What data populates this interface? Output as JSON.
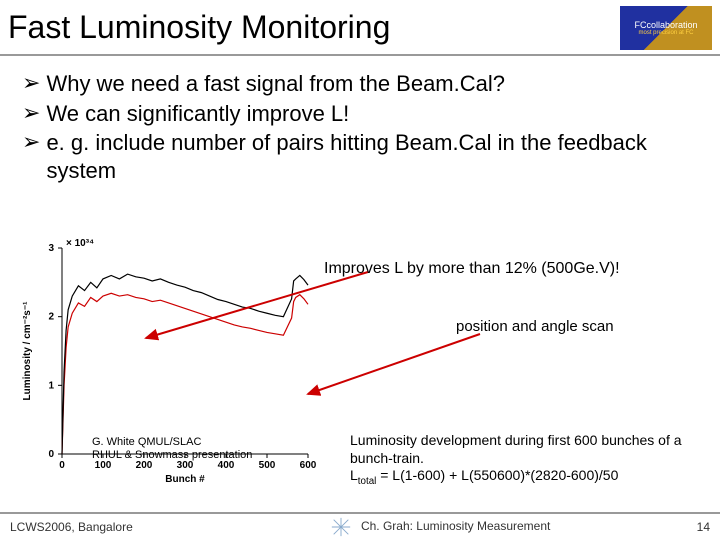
{
  "title": "Fast Luminosity Monitoring",
  "logo": {
    "line1": "FCcollaboration",
    "line2": "most precision at FC"
  },
  "bullets": [
    "Why we need a fast signal from the Beam.Cal?",
    "We can significantly improve L!",
    "e. g. include number of pairs hitting Beam.Cal in the feedback system"
  ],
  "chart": {
    "x_label": "Bunch #",
    "y_label": "Luminosity / cm⁻²s⁻¹",
    "y_multiplier": "× 10³⁴",
    "x_ticks": [
      0,
      100,
      200,
      300,
      400,
      500,
      600
    ],
    "y_ticks": [
      0,
      1,
      2,
      3
    ],
    "background_color": "#ffffff",
    "axis_color": "#000000",
    "curves": {
      "black": {
        "color": "#000000",
        "line_width": 1.2,
        "points": [
          [
            0,
            0
          ],
          [
            5,
            1.2
          ],
          [
            10,
            1.8
          ],
          [
            15,
            2.1
          ],
          [
            25,
            2.3
          ],
          [
            40,
            2.45
          ],
          [
            55,
            2.38
          ],
          [
            70,
            2.5
          ],
          [
            85,
            2.42
          ],
          [
            100,
            2.55
          ],
          [
            120,
            2.6
          ],
          [
            140,
            2.55
          ],
          [
            160,
            2.62
          ],
          [
            180,
            2.58
          ],
          [
            200,
            2.56
          ],
          [
            220,
            2.52
          ],
          [
            240,
            2.55
          ],
          [
            260,
            2.5
          ],
          [
            280,
            2.46
          ],
          [
            300,
            2.43
          ],
          [
            320,
            2.38
          ],
          [
            340,
            2.35
          ],
          [
            360,
            2.3
          ],
          [
            380,
            2.25
          ],
          [
            400,
            2.22
          ],
          [
            420,
            2.18
          ],
          [
            440,
            2.14
          ],
          [
            460,
            2.12
          ],
          [
            480,
            2.08
          ],
          [
            500,
            2.05
          ],
          [
            520,
            2.02
          ],
          [
            540,
            2.0
          ],
          [
            560,
            2.26
          ],
          [
            565,
            2.52
          ],
          [
            570,
            2.55
          ],
          [
            580,
            2.6
          ],
          [
            590,
            2.54
          ],
          [
            600,
            2.46
          ]
        ]
      },
      "red": {
        "color": "#cc0000",
        "line_width": 1.2,
        "points": [
          [
            0,
            0
          ],
          [
            5,
            1.0
          ],
          [
            10,
            1.55
          ],
          [
            15,
            1.85
          ],
          [
            25,
            2.05
          ],
          [
            40,
            2.2
          ],
          [
            55,
            2.15
          ],
          [
            70,
            2.28
          ],
          [
            85,
            2.22
          ],
          [
            100,
            2.3
          ],
          [
            120,
            2.34
          ],
          [
            140,
            2.3
          ],
          [
            160,
            2.32
          ],
          [
            180,
            2.28
          ],
          [
            200,
            2.26
          ],
          [
            220,
            2.22
          ],
          [
            240,
            2.24
          ],
          [
            260,
            2.2
          ],
          [
            280,
            2.16
          ],
          [
            300,
            2.12
          ],
          [
            320,
            2.08
          ],
          [
            340,
            2.04
          ],
          [
            360,
            2.0
          ],
          [
            380,
            1.96
          ],
          [
            400,
            1.92
          ],
          [
            420,
            1.88
          ],
          [
            440,
            1.85
          ],
          [
            460,
            1.83
          ],
          [
            480,
            1.8
          ],
          [
            500,
            1.77
          ],
          [
            520,
            1.75
          ],
          [
            540,
            1.73
          ],
          [
            560,
            1.98
          ],
          [
            565,
            2.22
          ],
          [
            570,
            2.28
          ],
          [
            580,
            2.32
          ],
          [
            590,
            2.26
          ],
          [
            600,
            2.18
          ]
        ]
      }
    },
    "arrows": [
      {
        "from": [
          368,
          272
        ],
        "to": [
          146,
          338
        ],
        "color": "#cc0000",
        "width": 2
      },
      {
        "from": [
          480,
          334
        ],
        "to": [
          308,
          394
        ],
        "color": "#cc0000",
        "width": 2
      }
    ]
  },
  "annot_improves": "Improves L by more than 12% (500Ge.V)!",
  "annot_scan": "position and angle scan",
  "credit_lines": [
    "G. White QMUL/SLAC",
    "RHUL & Snowmass presentation"
  ],
  "lumi_dev": {
    "line1": "Luminosity development during first 600 bunches of a bunch-train.",
    "line2_html": "L<sub>total</sub> = L(1-600) + L(550600)*(2820-600)/50"
  },
  "footer": {
    "left": "LCWS2006, Bangalore",
    "center": "Ch. Grah: Luminosity Measurement",
    "page": "14"
  }
}
